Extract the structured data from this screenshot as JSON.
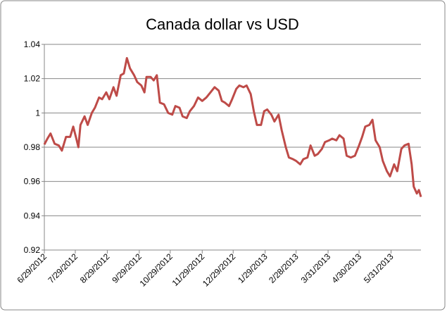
{
  "chart_data": {
    "type": "line",
    "title": "Canada dollar vs USD",
    "x": [
      "2012-06-29",
      "2012-07-02",
      "2012-07-05",
      "2012-07-09",
      "2012-07-13",
      "2012-07-16",
      "2012-07-20",
      "2012-07-24",
      "2012-07-27",
      "2012-07-30",
      "2012-08-01",
      "2012-08-03",
      "2012-08-07",
      "2012-08-10",
      "2012-08-14",
      "2012-08-17",
      "2012-08-21",
      "2012-08-24",
      "2012-08-28",
      "2012-08-31",
      "2012-09-04",
      "2012-09-07",
      "2012-09-11",
      "2012-09-14",
      "2012-09-17",
      "2012-09-20",
      "2012-09-24",
      "2012-09-27",
      "2012-10-01",
      "2012-10-04",
      "2012-10-06",
      "2012-10-10",
      "2012-10-13",
      "2012-10-16",
      "2012-10-19",
      "2012-10-23",
      "2012-10-27",
      "2012-10-31",
      "2012-11-03",
      "2012-11-07",
      "2012-11-10",
      "2012-11-14",
      "2012-11-17",
      "2012-11-21",
      "2012-11-25",
      "2012-11-29",
      "2012-12-03",
      "2012-12-07",
      "2012-12-11",
      "2012-12-15",
      "2012-12-18",
      "2012-12-21",
      "2012-12-25",
      "2012-12-28",
      "2013-01-01",
      "2013-01-04",
      "2013-01-08",
      "2013-01-11",
      "2013-01-15",
      "2013-01-18",
      "2013-01-21",
      "2013-01-25",
      "2013-01-28",
      "2013-01-31",
      "2013-02-04",
      "2013-02-07",
      "2013-02-11",
      "2013-02-14",
      "2013-02-18",
      "2013-02-21",
      "2013-02-25",
      "2013-02-28",
      "2013-03-04",
      "2013-03-07",
      "2013-03-11",
      "2013-03-14",
      "2013-03-18",
      "2013-03-21",
      "2013-03-25",
      "2013-03-28",
      "2013-04-01",
      "2013-04-04",
      "2013-04-08",
      "2013-04-11",
      "2013-04-15",
      "2013-04-18",
      "2013-04-22",
      "2013-04-26",
      "2013-04-30",
      "2013-05-03",
      "2013-05-06",
      "2013-05-10",
      "2013-05-13",
      "2013-05-16",
      "2013-05-20",
      "2013-05-23",
      "2013-05-27",
      "2013-05-30",
      "2013-06-03",
      "2013-06-06",
      "2013-06-10",
      "2013-06-13",
      "2013-06-17",
      "2013-06-20",
      "2013-06-22",
      "2013-06-25",
      "2013-06-27",
      "2013-06-29"
    ],
    "series": [
      {
        "name": "Canada dollar vs USD",
        "color": "#be4b48",
        "values": [
          0.9816,
          0.985,
          0.988,
          0.982,
          0.981,
          0.978,
          0.986,
          0.986,
          0.992,
          0.985,
          0.98,
          0.993,
          0.998,
          0.993,
          1.0,
          1.003,
          1.009,
          1.008,
          1.012,
          1.008,
          1.015,
          1.01,
          1.022,
          1.023,
          1.032,
          1.026,
          1.022,
          1.018,
          1.016,
          1.012,
          1.021,
          1.021,
          1.019,
          1.022,
          1.006,
          1.005,
          1.0,
          0.999,
          1.004,
          1.003,
          0.998,
          0.997,
          1.001,
          1.004,
          1.009,
          1.007,
          1.009,
          1.012,
          1.015,
          1.013,
          1.007,
          1.006,
          1.004,
          1.008,
          1.014,
          1.016,
          1.015,
          1.016,
          1.011,
          1.001,
          0.993,
          0.993,
          1.001,
          1.002,
          0.999,
          0.995,
          0.999,
          0.99,
          0.98,
          0.974,
          0.973,
          0.972,
          0.97,
          0.973,
          0.974,
          0.981,
          0.975,
          0.976,
          0.979,
          0.983,
          0.984,
          0.985,
          0.984,
          0.987,
          0.985,
          0.975,
          0.974,
          0.975,
          0.981,
          0.986,
          0.992,
          0.993,
          0.996,
          0.984,
          0.98,
          0.972,
          0.966,
          0.963,
          0.97,
          0.966,
          0.979,
          0.981,
          0.982,
          0.97,
          0.957,
          0.953,
          0.955,
          0.951
        ]
      }
    ],
    "xlim": [
      "2012-06-29",
      "2013-06-29"
    ],
    "xticks": [
      {
        "value": "2012-06-29",
        "label": "6/29/2012"
      },
      {
        "value": "2012-07-29",
        "label": "7/29/2012"
      },
      {
        "value": "2012-08-29",
        "label": "8/29/2012"
      },
      {
        "value": "2012-09-29",
        "label": "9/29/2012"
      },
      {
        "value": "2012-10-29",
        "label": "10/29/2012"
      },
      {
        "value": "2012-11-29",
        "label": "11/29/2012"
      },
      {
        "value": "2012-12-29",
        "label": "12/29/2012"
      },
      {
        "value": "2013-01-29",
        "label": "1/29/2013"
      },
      {
        "value": "2013-02-28",
        "label": "2/28/2013"
      },
      {
        "value": "2013-03-31",
        "label": "3/31/2013"
      },
      {
        "value": "2013-04-30",
        "label": "4/30/2013"
      },
      {
        "value": "2013-05-31",
        "label": "5/31/2013"
      }
    ],
    "ylim": [
      0.92,
      1.04
    ],
    "yticks": [
      0.92,
      0.94,
      0.96,
      0.98,
      1,
      1.02,
      1.04
    ],
    "grid": true
  }
}
